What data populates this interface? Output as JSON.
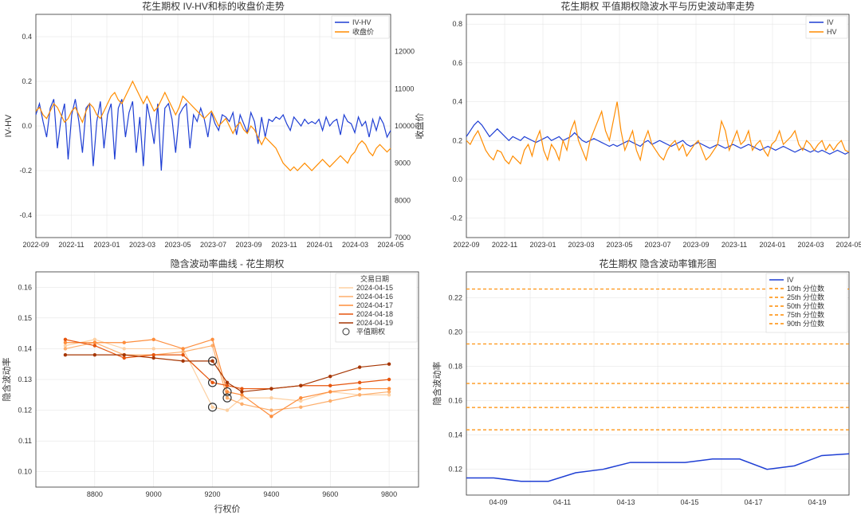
{
  "layout": {
    "rows": 2,
    "cols": 2,
    "background_color": "#ffffff"
  },
  "chart_tl": {
    "type": "line-dual-axis",
    "title": "花生期权  IV-HV和标的收盘价走势",
    "xticks": [
      "2022-09",
      "2022-11",
      "2023-01",
      "2023-03",
      "2023-05",
      "2023-07",
      "2023-09",
      "2023-11",
      "2024-01",
      "2024-03",
      "2024-05"
    ],
    "y1": {
      "label": "IV-HV",
      "lim": [
        -0.5,
        0.5
      ],
      "ticks": [
        -0.4,
        -0.2,
        0.0,
        0.2,
        0.4
      ],
      "color": "#1f3fd4"
    },
    "y2": {
      "label": "收盘价",
      "lim": [
        7000,
        13000
      ],
      "ticks": [
        7000,
        8000,
        9000,
        10000,
        11000,
        12000
      ],
      "color": "#d62728"
    },
    "series": [
      {
        "name": "IV-HV",
        "axis": "y1",
        "color": "#1f3fd4",
        "width": 1.2,
        "data": [
          0.05,
          0.1,
          0.02,
          -0.05,
          0.08,
          0.12,
          -0.1,
          0.03,
          0.1,
          -0.15,
          0.05,
          0.12,
          0.02,
          -0.12,
          0.08,
          0.1,
          -0.18,
          0.02,
          0.11,
          -0.1,
          0.05,
          0.1,
          -0.15,
          0.08,
          0.12,
          -0.05,
          0.06,
          0.11,
          -0.12,
          0.04,
          -0.18,
          0.1,
          0.02,
          -0.08,
          0.1,
          -0.2,
          0.08,
          0.1,
          0.03,
          -0.12,
          0.05,
          0.08,
          0.1,
          -0.1,
          0.05,
          0.02,
          0.08,
          0.03,
          -0.05,
          0.06,
          0.01,
          -0.02,
          0.05,
          0.04,
          0.02,
          0.06,
          -0.04,
          0.05,
          0.01,
          -0.03,
          0.06,
          0.02,
          -0.08,
          0.04,
          -0.05,
          0.03,
          0.02,
          0.04,
          0.03,
          0.05,
          0.01,
          -0.02,
          0.04,
          0.02,
          0.0,
          0.03,
          0.01,
          0.02,
          0.01,
          0.03,
          -0.02,
          0.04,
          0.0,
          0.02,
          0.03,
          -0.04,
          0.05,
          0.02,
          0.01,
          -0.03,
          0.04,
          0.0,
          0.02,
          -0.05,
          0.03,
          -0.02,
          0.04,
          0.01,
          -0.05,
          -0.02
        ]
      },
      {
        "name": "收盘价",
        "axis": "y2",
        "color": "#ff8c00",
        "width": 1.2,
        "data": [
          10400,
          10500,
          10300,
          10200,
          10400,
          10600,
          10500,
          10300,
          10100,
          10200,
          10400,
          10500,
          10300,
          10100,
          10400,
          10600,
          10500,
          10300,
          10200,
          10400,
          10600,
          10800,
          10900,
          10700,
          10600,
          10800,
          11000,
          11200,
          11000,
          10800,
          10600,
          10800,
          10600,
          10400,
          10500,
          10700,
          10900,
          10700,
          10500,
          10300,
          10500,
          10800,
          10700,
          10600,
          10500,
          10400,
          10300,
          10200,
          10300,
          10400,
          10200,
          10000,
          10100,
          10200,
          10000,
          9800,
          10000,
          10100,
          9900,
          9800,
          10000,
          9900,
          9700,
          9500,
          9700,
          9600,
          9500,
          9400,
          9200,
          9000,
          8900,
          8800,
          8900,
          8800,
          8900,
          9000,
          8900,
          8800,
          8900,
          9000,
          9100,
          9000,
          8900,
          9000,
          9100,
          9200,
          9100,
          9000,
          9200,
          9300,
          9500,
          9600,
          9500,
          9300,
          9200,
          9400,
          9500,
          9400,
          9300,
          9400
        ]
      }
    ],
    "legend": {
      "position": "top-right",
      "items": [
        "IV-HV",
        "收盘价"
      ],
      "colors": [
        "#1f3fd4",
        "#ff8c00"
      ]
    },
    "grid_color": "#e0e0e0",
    "background_color": "#ffffff"
  },
  "chart_tr": {
    "type": "line",
    "title": "花生期权 平值期权隐波水平与历史波动率走势",
    "xticks": [
      "2022-09",
      "2022-11",
      "2023-01",
      "2023-03",
      "2023-05",
      "2023-07",
      "2023-09",
      "2023-11",
      "2024-01",
      "2024-03",
      "2024-05"
    ],
    "y": {
      "lim": [
        -0.3,
        0.85
      ],
      "ticks": [
        -0.2,
        0.0,
        0.2,
        0.4,
        0.6,
        0.8
      ]
    },
    "series": [
      {
        "name": "IV",
        "color": "#1f3fd4",
        "width": 1.2,
        "data": [
          0.22,
          0.25,
          0.28,
          0.3,
          0.28,
          0.25,
          0.22,
          0.24,
          0.26,
          0.24,
          0.22,
          0.2,
          0.22,
          0.21,
          0.2,
          0.22,
          0.21,
          0.2,
          0.19,
          0.2,
          0.21,
          0.22,
          0.2,
          0.21,
          0.22,
          0.2,
          0.21,
          0.22,
          0.24,
          0.22,
          0.2,
          0.19,
          0.2,
          0.21,
          0.2,
          0.19,
          0.18,
          0.17,
          0.18,
          0.17,
          0.18,
          0.19,
          0.2,
          0.19,
          0.18,
          0.17,
          0.19,
          0.2,
          0.18,
          0.19,
          0.2,
          0.19,
          0.18,
          0.17,
          0.18,
          0.19,
          0.2,
          0.18,
          0.17,
          0.18,
          0.19,
          0.18,
          0.17,
          0.16,
          0.17,
          0.18,
          0.17,
          0.16,
          0.17,
          0.18,
          0.17,
          0.16,
          0.17,
          0.18,
          0.17,
          0.16,
          0.15,
          0.16,
          0.17,
          0.16,
          0.15,
          0.16,
          0.17,
          0.16,
          0.15,
          0.14,
          0.15,
          0.16,
          0.15,
          0.14,
          0.15,
          0.14,
          0.15,
          0.14,
          0.13,
          0.14,
          0.15,
          0.14,
          0.13,
          0.14
        ]
      },
      {
        "name": "HV",
        "color": "#ff8c00",
        "width": 1.2,
        "data": [
          0.2,
          0.18,
          0.22,
          0.25,
          0.2,
          0.15,
          0.12,
          0.1,
          0.15,
          0.14,
          0.1,
          0.08,
          0.12,
          0.1,
          0.08,
          0.15,
          0.18,
          0.12,
          0.2,
          0.25,
          0.15,
          0.1,
          0.18,
          0.15,
          0.1,
          0.2,
          0.15,
          0.25,
          0.3,
          0.2,
          0.15,
          0.1,
          0.2,
          0.25,
          0.3,
          0.35,
          0.25,
          0.2,
          0.3,
          0.4,
          0.25,
          0.15,
          0.2,
          0.25,
          0.15,
          0.1,
          0.2,
          0.25,
          0.18,
          0.15,
          0.12,
          0.1,
          0.15,
          0.18,
          0.2,
          0.15,
          0.18,
          0.12,
          0.15,
          0.18,
          0.2,
          0.15,
          0.1,
          0.12,
          0.15,
          0.18,
          0.3,
          0.25,
          0.15,
          0.2,
          0.25,
          0.18,
          0.2,
          0.25,
          0.15,
          0.18,
          0.2,
          0.15,
          0.12,
          0.18,
          0.2,
          0.25,
          0.18,
          0.2,
          0.22,
          0.25,
          0.18,
          0.15,
          0.2,
          0.18,
          0.15,
          0.18,
          0.2,
          0.15,
          0.18,
          0.15,
          0.18,
          0.2,
          0.15,
          0.14
        ]
      }
    ],
    "legend": {
      "position": "top-right",
      "items": [
        "IV",
        "HV"
      ],
      "colors": [
        "#1f3fd4",
        "#ff8c00"
      ]
    },
    "grid_color": "#e0e0e0",
    "background_color": "#ffffff"
  },
  "chart_bl": {
    "type": "line-multi",
    "title": "隐含波动率曲线 - 花生期权",
    "xlabel": "行权价",
    "ylabel": "隐含波动率",
    "xlim": [
      8600,
      9900
    ],
    "xticks": [
      8800,
      9000,
      9200,
      9400,
      9600,
      9800
    ],
    "ylim": [
      0.095,
      0.165
    ],
    "yticks": [
      0.1,
      0.11,
      0.12,
      0.13,
      0.14,
      0.15,
      0.16
    ],
    "legend_title": "交易日期",
    "colors": [
      "#fdd0a2",
      "#fdae6b",
      "#fd8d3c",
      "#e6550d",
      "#a63603"
    ],
    "series": [
      {
        "name": "2024-04-15",
        "strikes": [
          8700,
          8800,
          8900,
          9000,
          9100,
          9200,
          9250,
          9300,
          9400,
          9500,
          9600,
          9700,
          9800
        ],
        "iv": [
          0.141,
          0.143,
          0.14,
          0.14,
          0.14,
          0.121,
          0.12,
          0.124,
          0.124,
          0.123,
          0.126,
          0.125,
          0.125
        ],
        "atm_idx": 5
      },
      {
        "name": "2024-04-16",
        "strikes": [
          8700,
          8800,
          8900,
          9000,
          9100,
          9200,
          9250,
          9300,
          9400,
          9500,
          9600,
          9700,
          9800
        ],
        "iv": [
          0.14,
          0.142,
          0.138,
          0.138,
          0.139,
          0.141,
          0.124,
          0.122,
          0.12,
          0.121,
          0.123,
          0.125,
          0.126
        ],
        "atm_idx": 6
      },
      {
        "name": "2024-04-17",
        "strikes": [
          8700,
          8800,
          8900,
          9000,
          9100,
          9200,
          9250,
          9300,
          9400,
          9500,
          9600,
          9700,
          9800
        ],
        "iv": [
          0.142,
          0.142,
          0.142,
          0.143,
          0.14,
          0.143,
          0.126,
          0.125,
          0.118,
          0.124,
          0.126,
          0.127,
          0.127
        ],
        "atm_idx": 6
      },
      {
        "name": "2024-04-18",
        "strikes": [
          8700,
          8800,
          8900,
          9000,
          9100,
          9200,
          9250,
          9300,
          9400,
          9500,
          9600,
          9700,
          9800
        ],
        "iv": [
          0.143,
          0.141,
          0.137,
          0.138,
          0.138,
          0.129,
          0.128,
          0.127,
          0.127,
          0.128,
          0.128,
          0.129,
          0.13
        ],
        "atm_idx": 5
      },
      {
        "name": "2024-04-19",
        "strikes": [
          8700,
          8800,
          8900,
          9000,
          9100,
          9200,
          9250,
          9300,
          9400,
          9500,
          9600,
          9700,
          9800
        ],
        "iv": [
          0.138,
          0.138,
          0.138,
          0.137,
          0.136,
          0.136,
          0.129,
          0.126,
          0.127,
          0.128,
          0.131,
          0.134,
          0.135
        ],
        "atm_idx": 5
      }
    ],
    "atm_label": "平值期权",
    "grid_color": "#e0e0e0",
    "background_color": "#ffffff"
  },
  "chart_br": {
    "type": "line-with-hlines",
    "title": "花生期权 隐含波动率锥形图",
    "ylabel": "隐含波动率",
    "xticks": [
      "04-09",
      "04-11",
      "04-13",
      "04-15",
      "04-17",
      "04-19"
    ],
    "ylim": [
      0.105,
      0.235
    ],
    "yticks": [
      0.12,
      0.14,
      0.16,
      0.18,
      0.2,
      0.22
    ],
    "series": [
      {
        "name": "IV",
        "color": "#1f3fd4",
        "width": 1.5,
        "data": [
          0.115,
          0.115,
          0.113,
          0.113,
          0.118,
          0.12,
          0.124,
          0.124,
          0.124,
          0.126,
          0.126,
          0.12,
          0.122,
          0.128,
          0.129
        ]
      }
    ],
    "hlines": [
      {
        "name": "10th 分位数",
        "value": 0.143,
        "color": "#ff8c00",
        "dash": [
          4,
          3
        ]
      },
      {
        "name": "25th 分位数",
        "value": 0.156,
        "color": "#ff8c00",
        "dash": [
          4,
          3
        ]
      },
      {
        "name": "50th 分位数",
        "value": 0.17,
        "color": "#ff8c00",
        "dash": [
          4,
          3
        ]
      },
      {
        "name": "75th 分位数",
        "value": 0.193,
        "color": "#ff8c00",
        "dash": [
          4,
          3
        ]
      },
      {
        "name": "90th 分位数",
        "value": 0.225,
        "color": "#ff8c00",
        "dash": [
          4,
          3
        ]
      }
    ],
    "legend": {
      "position": "top-right"
    },
    "grid_color": "#e0e0e0",
    "background_color": "#ffffff"
  }
}
